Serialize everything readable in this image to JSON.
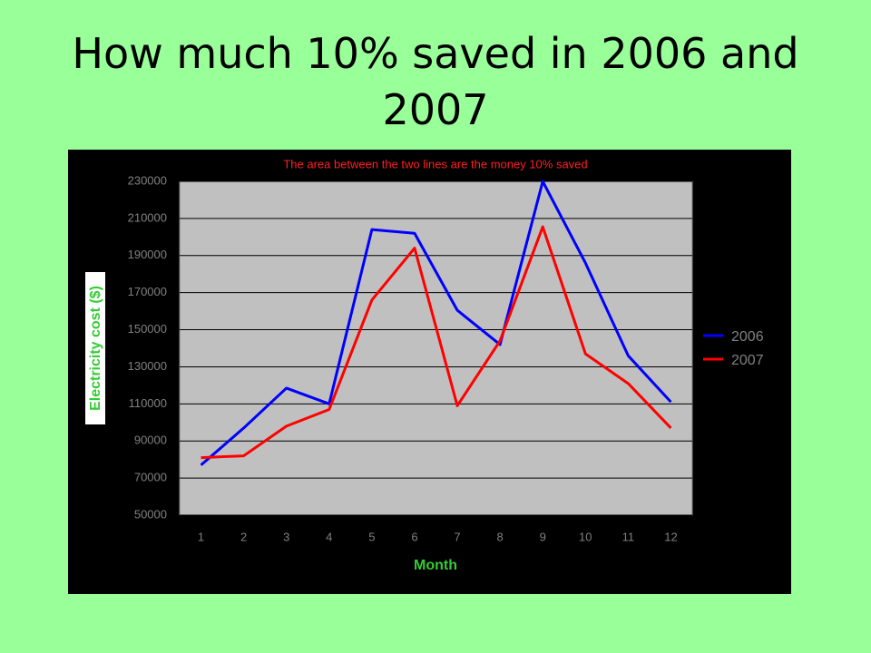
{
  "chart_data": {
    "type": "line",
    "title": "How much 10% saved in 2006 and 2007",
    "annotation": "The area between the two lines are the money 10% saved",
    "xlabel": "Month",
    "ylabel": "Electricity cost ($)",
    "categories": [
      "1",
      "2",
      "3",
      "4",
      "5",
      "6",
      "7",
      "8",
      "9",
      "10",
      "11",
      "12"
    ],
    "series": [
      {
        "name": "2006",
        "color": "#0000ff",
        "values": [
          77000,
          97000,
          118500,
          110000,
          204000,
          202000,
          160500,
          142000,
          230000,
          186000,
          136000,
          111000
        ]
      },
      {
        "name": "2007",
        "color": "#ff0000",
        "values": [
          81000,
          82000,
          98000,
          107000,
          166000,
          194000,
          109000,
          144000,
          205500,
          137000,
          121000,
          97000
        ]
      }
    ],
    "ylim": [
      50000,
      230000
    ],
    "yticks": [
      50000,
      70000,
      90000,
      110000,
      130000,
      150000,
      170000,
      190000,
      210000,
      230000
    ],
    "grid": true,
    "legend": "right"
  }
}
